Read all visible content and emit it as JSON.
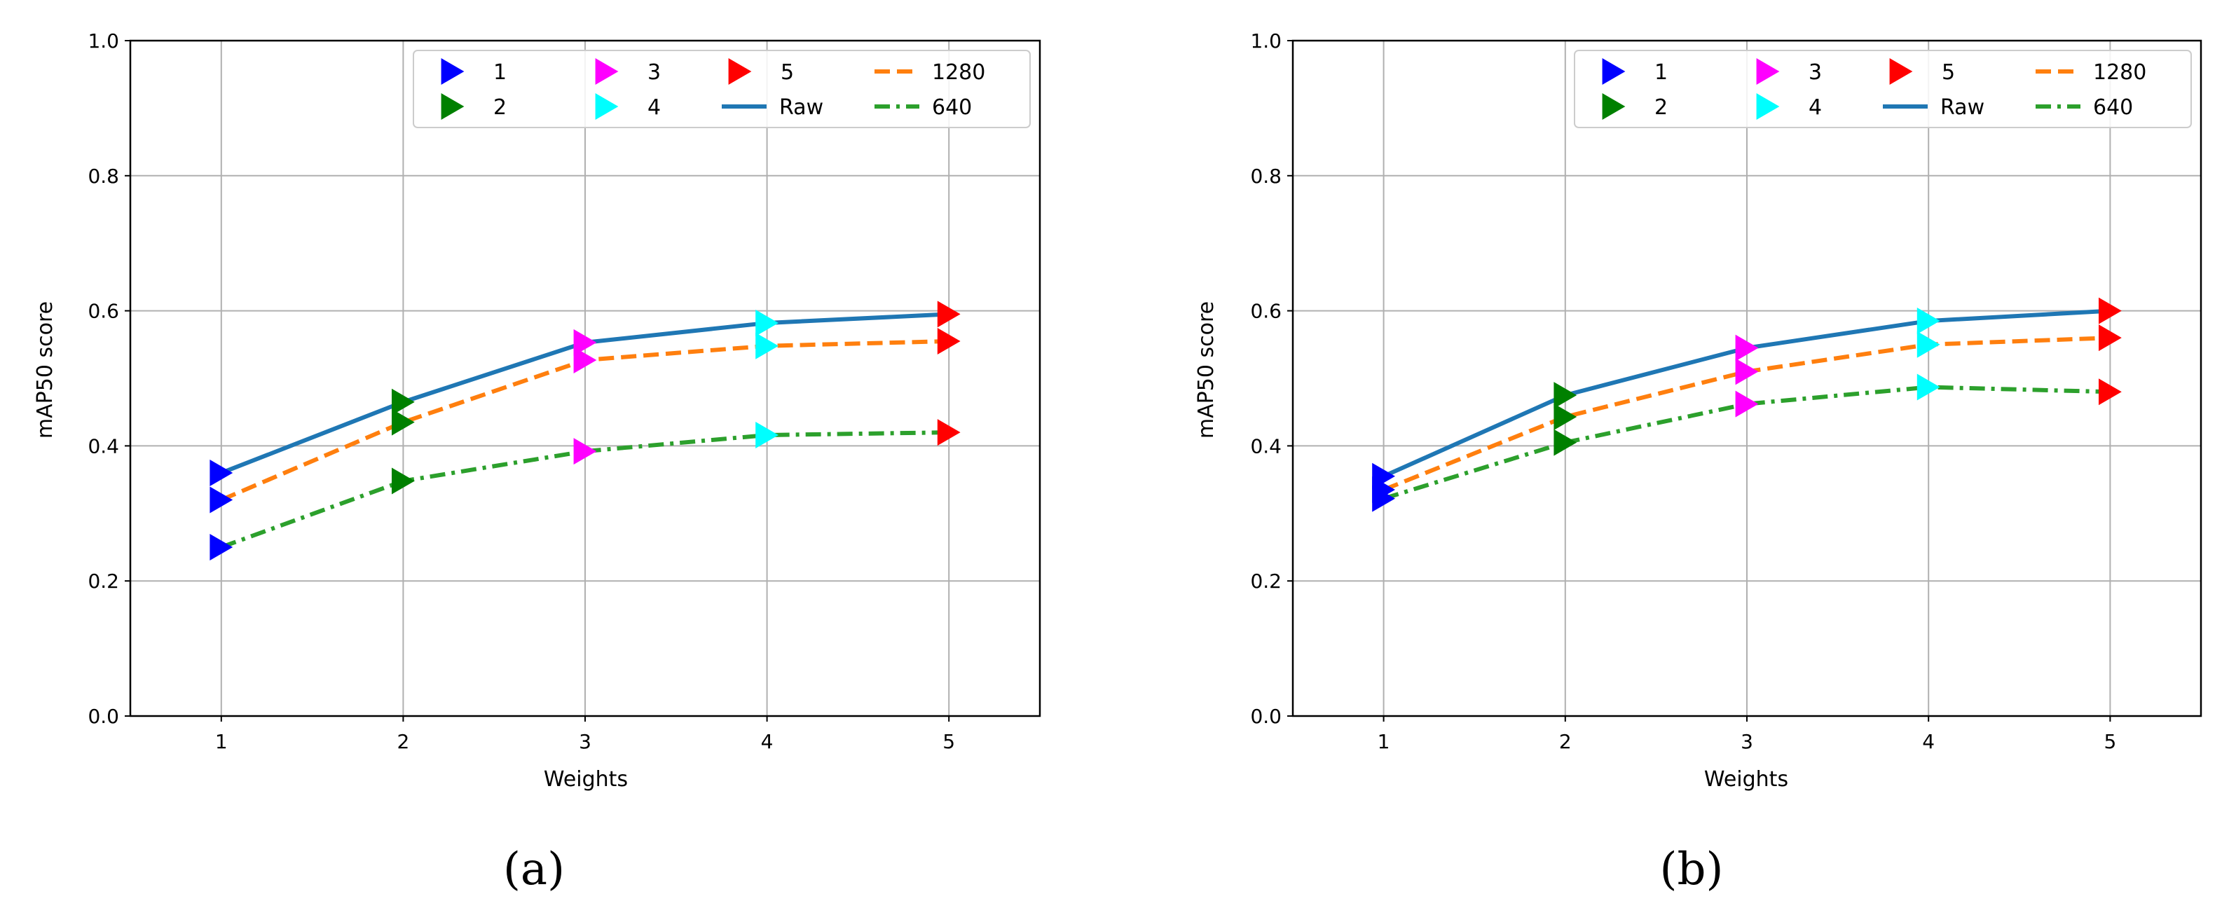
{
  "chart_data": [
    {
      "type": "line",
      "caption": "(a)",
      "xlabel": "Weights",
      "ylabel": "mAP50 score",
      "xlim": [
        0.5,
        5.5
      ],
      "ylim": [
        0.0,
        1.0
      ],
      "x": [
        1,
        2,
        3,
        4,
        5
      ],
      "xticks": [
        "1",
        "2",
        "3",
        "4",
        "5"
      ],
      "yticks": [
        "0.0",
        "0.2",
        "0.4",
        "0.6",
        "0.8",
        "1.0"
      ],
      "grid": true,
      "legend_position": "top-right",
      "series": [
        {
          "name": "Raw",
          "style": "solid",
          "color": "#1f77b4",
          "values": [
            0.36,
            0.465,
            0.553,
            0.582,
            0.595
          ]
        },
        {
          "name": "1280",
          "style": "dashed",
          "color": "#ff7f0e",
          "values": [
            0.32,
            0.435,
            0.527,
            0.548,
            0.555
          ]
        },
        {
          "name": "640",
          "style": "dashdot",
          "color": "#2ca02c",
          "values": [
            0.25,
            0.348,
            0.392,
            0.416,
            0.42
          ]
        }
      ],
      "markers": [
        {
          "name": "1",
          "color": "#0000ff"
        },
        {
          "name": "2",
          "color": "#008000"
        },
        {
          "name": "3",
          "color": "#ff00ff"
        },
        {
          "name": "4",
          "color": "#00ffff"
        },
        {
          "name": "5",
          "color": "#ff0000"
        }
      ]
    },
    {
      "type": "line",
      "caption": "(b)",
      "xlabel": "Weights",
      "ylabel": "mAP50 score",
      "xlim": [
        0.5,
        5.5
      ],
      "ylim": [
        0.0,
        1.0
      ],
      "x": [
        1,
        2,
        3,
        4,
        5
      ],
      "xticks": [
        "1",
        "2",
        "3",
        "4",
        "5"
      ],
      "yticks": [
        "0.0",
        "0.2",
        "0.4",
        "0.6",
        "0.8",
        "1.0"
      ],
      "grid": true,
      "legend_position": "top-right",
      "series": [
        {
          "name": "Raw",
          "style": "solid",
          "color": "#1f77b4",
          "values": [
            0.355,
            0.475,
            0.545,
            0.585,
            0.6
          ]
        },
        {
          "name": "1280",
          "style": "dashed",
          "color": "#ff7f0e",
          "values": [
            0.335,
            0.443,
            0.51,
            0.55,
            0.56
          ]
        },
        {
          "name": "640",
          "style": "dashdot",
          "color": "#2ca02c",
          "values": [
            0.322,
            0.405,
            0.462,
            0.487,
            0.48
          ]
        }
      ],
      "markers": [
        {
          "name": "1",
          "color": "#0000ff"
        },
        {
          "name": "2",
          "color": "#008000"
        },
        {
          "name": "3",
          "color": "#ff00ff"
        },
        {
          "name": "4",
          "color": "#00ffff"
        },
        {
          "name": "5",
          "color": "#ff0000"
        }
      ]
    }
  ]
}
